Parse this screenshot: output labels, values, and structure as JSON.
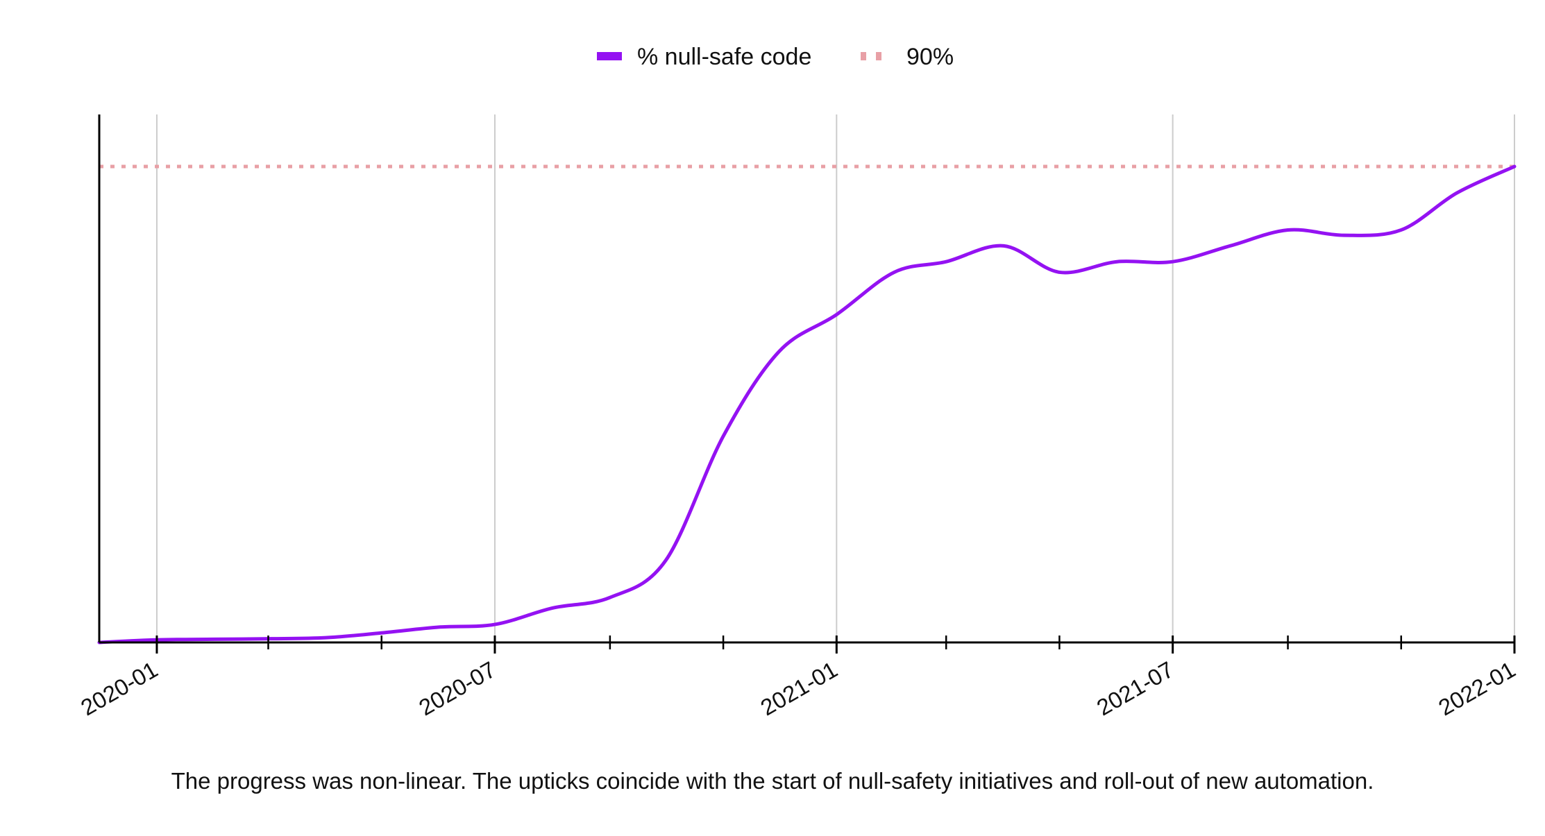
{
  "chart_data": {
    "type": "line",
    "title": "",
    "xlabel": "",
    "ylabel": "",
    "x_tick_labels": [
      "2020-01",
      "2020-07",
      "2021-01",
      "2021-07",
      "2022-01"
    ],
    "x_ticks": [
      "2020-01-01",
      "2020-07-01",
      "2021-01-01",
      "2021-07-01",
      "2022-01-01"
    ],
    "x_minor_ticks": [
      "2020-03-01",
      "2020-05-01",
      "2020-09-01",
      "2020-11-01",
      "2021-03-01",
      "2021-05-01",
      "2021-09-01",
      "2021-11-01"
    ],
    "xlim": [
      "2019-12-01",
      "2022-01-01"
    ],
    "ylim": [
      0,
      100
    ],
    "grid": "vertical at labelled ticks",
    "legend_position": "top-center",
    "series": [
      {
        "name": "% null-safe code",
        "color": "#9412f2",
        "style": "solid",
        "x": [
          "2019-12-01",
          "2020-01-01",
          "2020-02-01",
          "2020-03-01",
          "2020-04-01",
          "2020-05-01",
          "2020-06-01",
          "2020-07-01",
          "2020-08-01",
          "2020-09-01",
          "2020-10-01",
          "2020-11-01",
          "2020-12-01",
          "2021-01-01",
          "2021-02-01",
          "2021-03-01",
          "2021-04-01",
          "2021-05-01",
          "2021-06-01",
          "2021-07-01",
          "2021-08-01",
          "2021-09-01",
          "2021-10-01",
          "2021-11-01",
          "2021-12-01",
          "2022-01-01"
        ],
        "values": [
          0,
          0.5,
          0.6,
          0.7,
          0.9,
          1.8,
          2.9,
          3.4,
          6.5,
          8.5,
          15.5,
          39,
          55,
          62,
          70,
          72,
          75,
          70,
          72,
          72,
          75,
          78,
          77,
          78,
          85,
          90
        ]
      },
      {
        "name": "90%",
        "color": "#e8a0a6",
        "style": "dotted",
        "x": [
          "2019-12-01",
          "2022-01-01"
        ],
        "values": [
          90,
          90
        ]
      }
    ],
    "caption": "The progress was non-linear. The upticks coincide with the start of null-safety initiatives and roll-out of new automation."
  }
}
